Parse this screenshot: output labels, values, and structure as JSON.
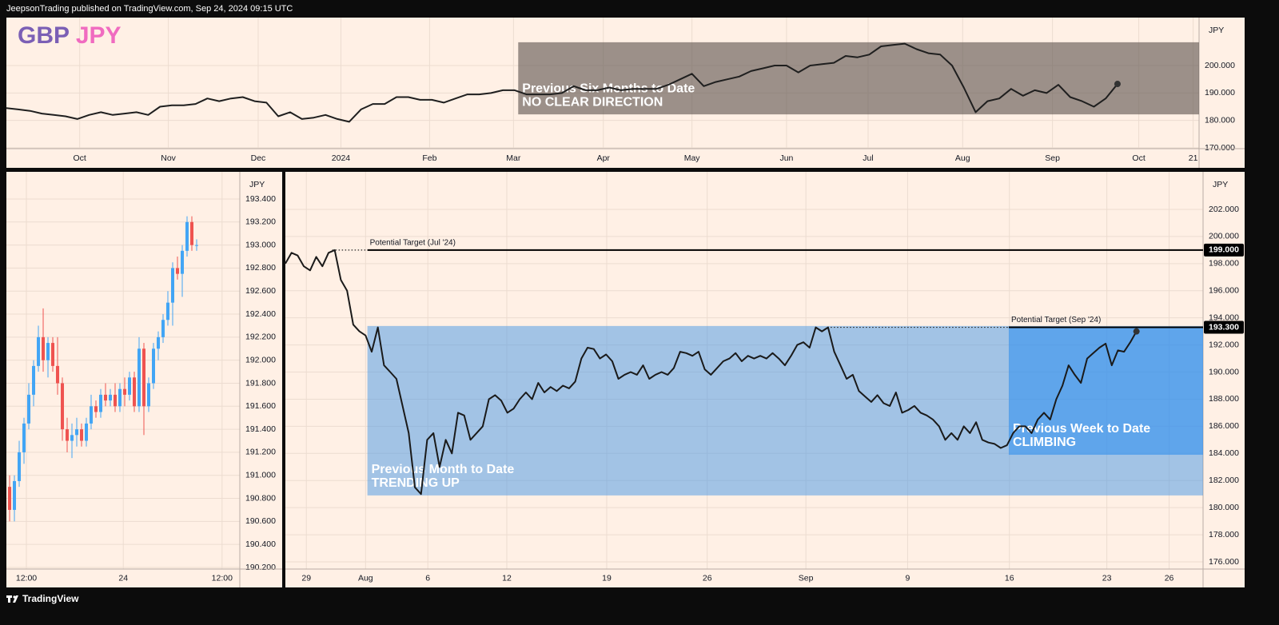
{
  "header": "JeepsonTrading published on TradingView.com, Sep 24, 2024 09:15 UTC",
  "footer": "TradingView",
  "title_parts": [
    {
      "text": "GBP",
      "color": "#7b5fb5"
    },
    {
      "text": "JPY",
      "color": "#f06bc0"
    }
  ],
  "chart_data": [
    {
      "type": "line",
      "y_unit": "JPY",
      "grid": true,
      "end_marker": true,
      "xlim": [
        0,
        100.9
      ],
      "ylim": [
        169.7,
        217.5
      ],
      "xticks": [
        {
          "value": 6.2,
          "label": "Oct"
        },
        {
          "value": 13.7,
          "label": "Nov"
        },
        {
          "value": 21.3,
          "label": "Dec"
        },
        {
          "value": 28.3,
          "label": "2024"
        },
        {
          "value": 35.8,
          "label": "Feb"
        },
        {
          "value": 42.9,
          "label": "Mar"
        },
        {
          "value": 50.5,
          "label": "Apr"
        },
        {
          "value": 58.0,
          "label": "May"
        },
        {
          "value": 66.0,
          "label": "Jun"
        },
        {
          "value": 72.9,
          "label": "Jul"
        },
        {
          "value": 80.9,
          "label": "Aug"
        },
        {
          "value": 88.5,
          "label": "Sep"
        },
        {
          "value": 95.8,
          "label": "Oct"
        },
        {
          "value": 100.4,
          "label": "21"
        }
      ],
      "yticks": [
        {
          "value": 170,
          "label": "170.000"
        },
        {
          "value": 180,
          "label": "180.000"
        },
        {
          "value": 190,
          "label": "190.000"
        },
        {
          "value": 200,
          "label": "200.000"
        }
      ],
      "boxes": [
        {
          "x": [
            43.3,
            100.9
          ],
          "y": [
            182.2,
            208.5
          ],
          "color": "rgba(95,86,80,0.62)",
          "text": [
            "Previous Six Months to Date",
            "NO CLEAR DIRECTION"
          ]
        }
      ],
      "series": [
        {
          "color": "#1f1f1f",
          "values": [
            184.5,
            184,
            183.5,
            182.5,
            182,
            181.5,
            180.5,
            182,
            183,
            182,
            182.5,
            183,
            182,
            185,
            185.5,
            185.5,
            186,
            188,
            187,
            188,
            188.5,
            187,
            186.5,
            181.5,
            183,
            180.5,
            181,
            182,
            180.5,
            179.5,
            184,
            186,
            186,
            188.5,
            188.5,
            187.5,
            187.5,
            186.5,
            188,
            189.5,
            189.5,
            190,
            191,
            191,
            189.5,
            189.5,
            189.5,
            190,
            192.5,
            191,
            191,
            192,
            191,
            191.5,
            191.5,
            191.5,
            193,
            195,
            197,
            192.5,
            194,
            195,
            196,
            198,
            199,
            200,
            200,
            197.5,
            200,
            200.5,
            201,
            203.5,
            203,
            204,
            207,
            207.5,
            208,
            206,
            204.5,
            204,
            200,
            192,
            183,
            187,
            188,
            191.5,
            189,
            191,
            190,
            193,
            188.5,
            187,
            185,
            188,
            193.3
          ]
        }
      ]
    },
    {
      "type": "candlestick",
      "y_unit": "JPY",
      "grid": true,
      "up_color": "#42a5f5",
      "down_color": "#ef5350",
      "xlim": [
        -0.67,
        48
      ],
      "ylim": [
        190.186,
        193.636
      ],
      "xticks": [
        {
          "value": 3.5,
          "label": "12:00"
        },
        {
          "value": 23.7,
          "label": "24"
        },
        {
          "value": 44.3,
          "label": "12:00"
        }
      ],
      "yticks": [
        {
          "value": 190.2,
          "label": "190.200"
        },
        {
          "value": 190.4,
          "label": "190.400"
        },
        {
          "value": 190.6,
          "label": "190.600"
        },
        {
          "value": 190.8,
          "label": "190.800"
        },
        {
          "value": 191.0,
          "label": "191.000"
        },
        {
          "value": 191.2,
          "label": "191.200"
        },
        {
          "value": 191.4,
          "label": "191.400"
        },
        {
          "value": 191.6,
          "label": "191.600"
        },
        {
          "value": 191.8,
          "label": "191.800"
        },
        {
          "value": 192.0,
          "label": "192.000"
        },
        {
          "value": 192.2,
          "label": "192.200"
        },
        {
          "value": 192.4,
          "label": "192.400"
        },
        {
          "value": 192.6,
          "label": "192.600"
        },
        {
          "value": 192.8,
          "label": "192.800"
        },
        {
          "value": 193.0,
          "label": "193.000"
        },
        {
          "value": 193.2,
          "label": "193.200"
        },
        {
          "value": 193.4,
          "label": "193.400"
        }
      ],
      "open": [
        190.9,
        190.7,
        190.95,
        191.2,
        191.45,
        191.7,
        191.95,
        192.2,
        192.0,
        192.15,
        191.95,
        191.8,
        191.4,
        191.3,
        191.35,
        191.4,
        191.3,
        191.45,
        191.6,
        191.55,
        191.7,
        191.65,
        191.7,
        191.6,
        191.75,
        191.7,
        191.85,
        191.6,
        192.1,
        191.6,
        191.8,
        192.1,
        192.2,
        192.35,
        192.5,
        192.8,
        192.75,
        192.95,
        193.2,
        193.0
      ],
      "high": [
        191.0,
        191.0,
        191.3,
        191.5,
        191.8,
        192.0,
        192.3,
        192.45,
        192.2,
        192.2,
        192.2,
        191.85,
        191.5,
        191.45,
        191.5,
        191.45,
        191.5,
        191.7,
        191.65,
        191.75,
        191.8,
        191.75,
        191.8,
        191.8,
        191.85,
        191.9,
        191.9,
        192.2,
        192.15,
        191.85,
        192.15,
        192.25,
        192.4,
        192.6,
        192.85,
        192.9,
        193.0,
        193.25,
        193.25,
        193.05
      ],
      "low": [
        190.6,
        190.6,
        190.9,
        191.1,
        191.4,
        191.6,
        191.9,
        191.9,
        191.85,
        191.9,
        191.7,
        191.3,
        191.2,
        191.15,
        191.25,
        191.25,
        191.25,
        191.4,
        191.5,
        191.5,
        191.6,
        191.6,
        191.55,
        191.55,
        191.6,
        191.65,
        191.55,
        191.55,
        191.35,
        191.55,
        191.75,
        192.0,
        192.15,
        192.3,
        192.3,
        192.7,
        192.55,
        192.9,
        192.95,
        192.95
      ],
      "close": [
        190.7,
        190.95,
        191.2,
        191.45,
        191.7,
        191.95,
        192.2,
        192.0,
        192.15,
        191.95,
        191.8,
        191.4,
        191.3,
        191.35,
        191.4,
        191.3,
        191.45,
        191.6,
        191.55,
        191.7,
        191.65,
        191.7,
        191.6,
        191.75,
        191.7,
        191.85,
        191.6,
        192.1,
        191.6,
        191.8,
        192.1,
        192.2,
        192.35,
        192.5,
        192.8,
        192.75,
        192.95,
        193.2,
        193.0,
        193.0
      ]
    },
    {
      "type": "line",
      "y_unit": "JPY",
      "grid": true,
      "end_marker": true,
      "xlim": [
        0,
        148.8
      ],
      "ylim": [
        175.47,
        204.77
      ],
      "xticks": [
        {
          "value": 3.4,
          "label": "29"
        },
        {
          "value": 13.0,
          "label": "Aug"
        },
        {
          "value": 23.1,
          "label": "6"
        },
        {
          "value": 35.9,
          "label": "12"
        },
        {
          "value": 52.1,
          "label": "19"
        },
        {
          "value": 68.4,
          "label": "26"
        },
        {
          "value": 84.4,
          "label": "Sep"
        },
        {
          "value": 100.9,
          "label": "9"
        },
        {
          "value": 117.4,
          "label": "16"
        },
        {
          "value": 133.2,
          "label": "23"
        },
        {
          "value": 143.3,
          "label": "26"
        }
      ],
      "yticks": [
        {
          "value": 176,
          "label": "176.000"
        },
        {
          "value": 178,
          "label": "178.000"
        },
        {
          "value": 180,
          "label": "180.000"
        },
        {
          "value": 182,
          "label": "182.000"
        },
        {
          "value": 184,
          "label": "184.000"
        },
        {
          "value": 186,
          "label": "186.000"
        },
        {
          "value": 188,
          "label": "188.000"
        },
        {
          "value": 190,
          "label": "190.000"
        },
        {
          "value": 192,
          "label": "192.000"
        },
        {
          "value": 194,
          "label": "194.000"
        },
        {
          "value": 196,
          "label": "196.000"
        },
        {
          "value": 198,
          "label": "198.000"
        },
        {
          "value": 200,
          "label": "200.000"
        },
        {
          "value": 202,
          "label": "202.000"
        }
      ],
      "boxes": [
        {
          "x": [
            13.3,
            148.8
          ],
          "y": [
            180.9,
            193.4
          ],
          "color": "rgba(70,150,230,0.5)",
          "text": [
            "Previous Month to Date",
            "TRENDING UP"
          ]
        },
        {
          "x": [
            117.3,
            148.8
          ],
          "y": [
            183.9,
            193.3
          ],
          "color": "rgba(40,140,240,0.55)",
          "text": [
            "Previous Week to Date",
            "CLIMBING"
          ]
        }
      ],
      "levels": [
        {
          "value": 199,
          "label": "199.000",
          "text": "Potential Target (Jul '24)",
          "from": 7.6,
          "solid_from": 13.3
        },
        {
          "value": 193.3,
          "label": "193.300",
          "text": "Potential Target (Sep '24)",
          "from": 87.9,
          "solid_from": 117.3
        }
      ],
      "series": [
        {
          "color": "#1a1a1a",
          "values": [
            198.0,
            198.8,
            198.6,
            197.8,
            197.5,
            198.5,
            197.8,
            198.8,
            199.0,
            196.8,
            196.0,
            193.5,
            193.0,
            192.7,
            191.5,
            193.3,
            190.5,
            190.0,
            189.5,
            187.5,
            185.5,
            181.5,
            181.0,
            185.0,
            185.5,
            183.0,
            185.0,
            184.0,
            187.0,
            186.8,
            185.0,
            185.5,
            186.0,
            188.0,
            188.3,
            187.9,
            187.0,
            187.3,
            188.0,
            188.5,
            188.0,
            189.2,
            188.5,
            188.9,
            188.6,
            189.0,
            188.8,
            189.3,
            191.0,
            191.8,
            191.7,
            191.0,
            191.3,
            190.8,
            189.5,
            189.8,
            190.0,
            189.8,
            190.5,
            189.5,
            189.8,
            190.0,
            189.8,
            190.3,
            191.5,
            191.4,
            191.2,
            191.5,
            190.2,
            189.8,
            190.3,
            190.8,
            191.0,
            191.4,
            190.8,
            191.2,
            191.0,
            191.2,
            191.0,
            191.4,
            191.0,
            190.5,
            191.2,
            192.0,
            192.2,
            191.8,
            193.3,
            193.0,
            193.3,
            191.5,
            190.5,
            189.5,
            189.8,
            188.6,
            188.2,
            187.8,
            188.3,
            187.7,
            187.5,
            188.5,
            187.0,
            187.2,
            187.5,
            187.0,
            186.8,
            186.5,
            186.0,
            185.0,
            185.5,
            185.0,
            186.0,
            185.5,
            186.3,
            185.0,
            184.8,
            184.7,
            184.4,
            184.6,
            185.5,
            186.0,
            186.0,
            185.5,
            186.5,
            187.0,
            186.5,
            188.0,
            189.0,
            190.5,
            189.8,
            189.2,
            191.0,
            191.4,
            191.8,
            192.1,
            190.5,
            191.6,
            191.5,
            192.2,
            193.0
          ]
        }
      ]
    }
  ]
}
